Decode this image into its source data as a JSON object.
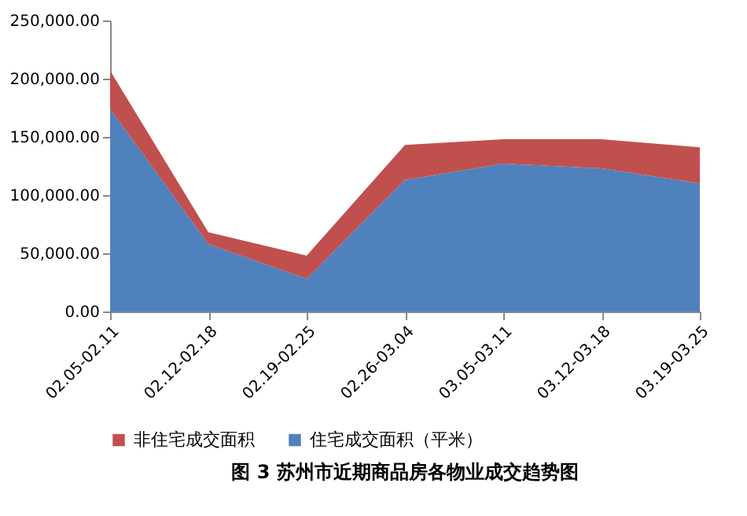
{
  "chart_data": {
    "type": "area",
    "title": "图 3 苏州市近期商品房各物业成交趋势图",
    "stacked": true,
    "categories": [
      "02.05-02.11",
      "02.12-02.18",
      "02.19-02.25",
      "02.26-03.04",
      "03.05-03.11",
      "03.12-03.18",
      "03.19-03.25"
    ],
    "series": [
      {
        "name": "住宅成交面积（平米）",
        "color": "#4f81bd",
        "values": [
          174000,
          58000,
          28000,
          113000,
          127000,
          123000,
          110000
        ]
      },
      {
        "name": "非住宅成交面积",
        "color": "#c0504d",
        "values": [
          33000,
          10000,
          20000,
          30000,
          21000,
          25000,
          31000
        ]
      }
    ],
    "ylim": [
      0,
      250000
    ],
    "yticks": [
      {
        "value": 0,
        "label": "0.00"
      },
      {
        "value": 50000,
        "label": "50,000.00"
      },
      {
        "value": 100000,
        "label": "100,000.00"
      },
      {
        "value": 150000,
        "label": "150,000.00"
      },
      {
        "value": 200000,
        "label": "200,000.00"
      },
      {
        "value": 250000,
        "label": "250,000.00"
      }
    ],
    "grid": false,
    "legend": "bottom"
  }
}
